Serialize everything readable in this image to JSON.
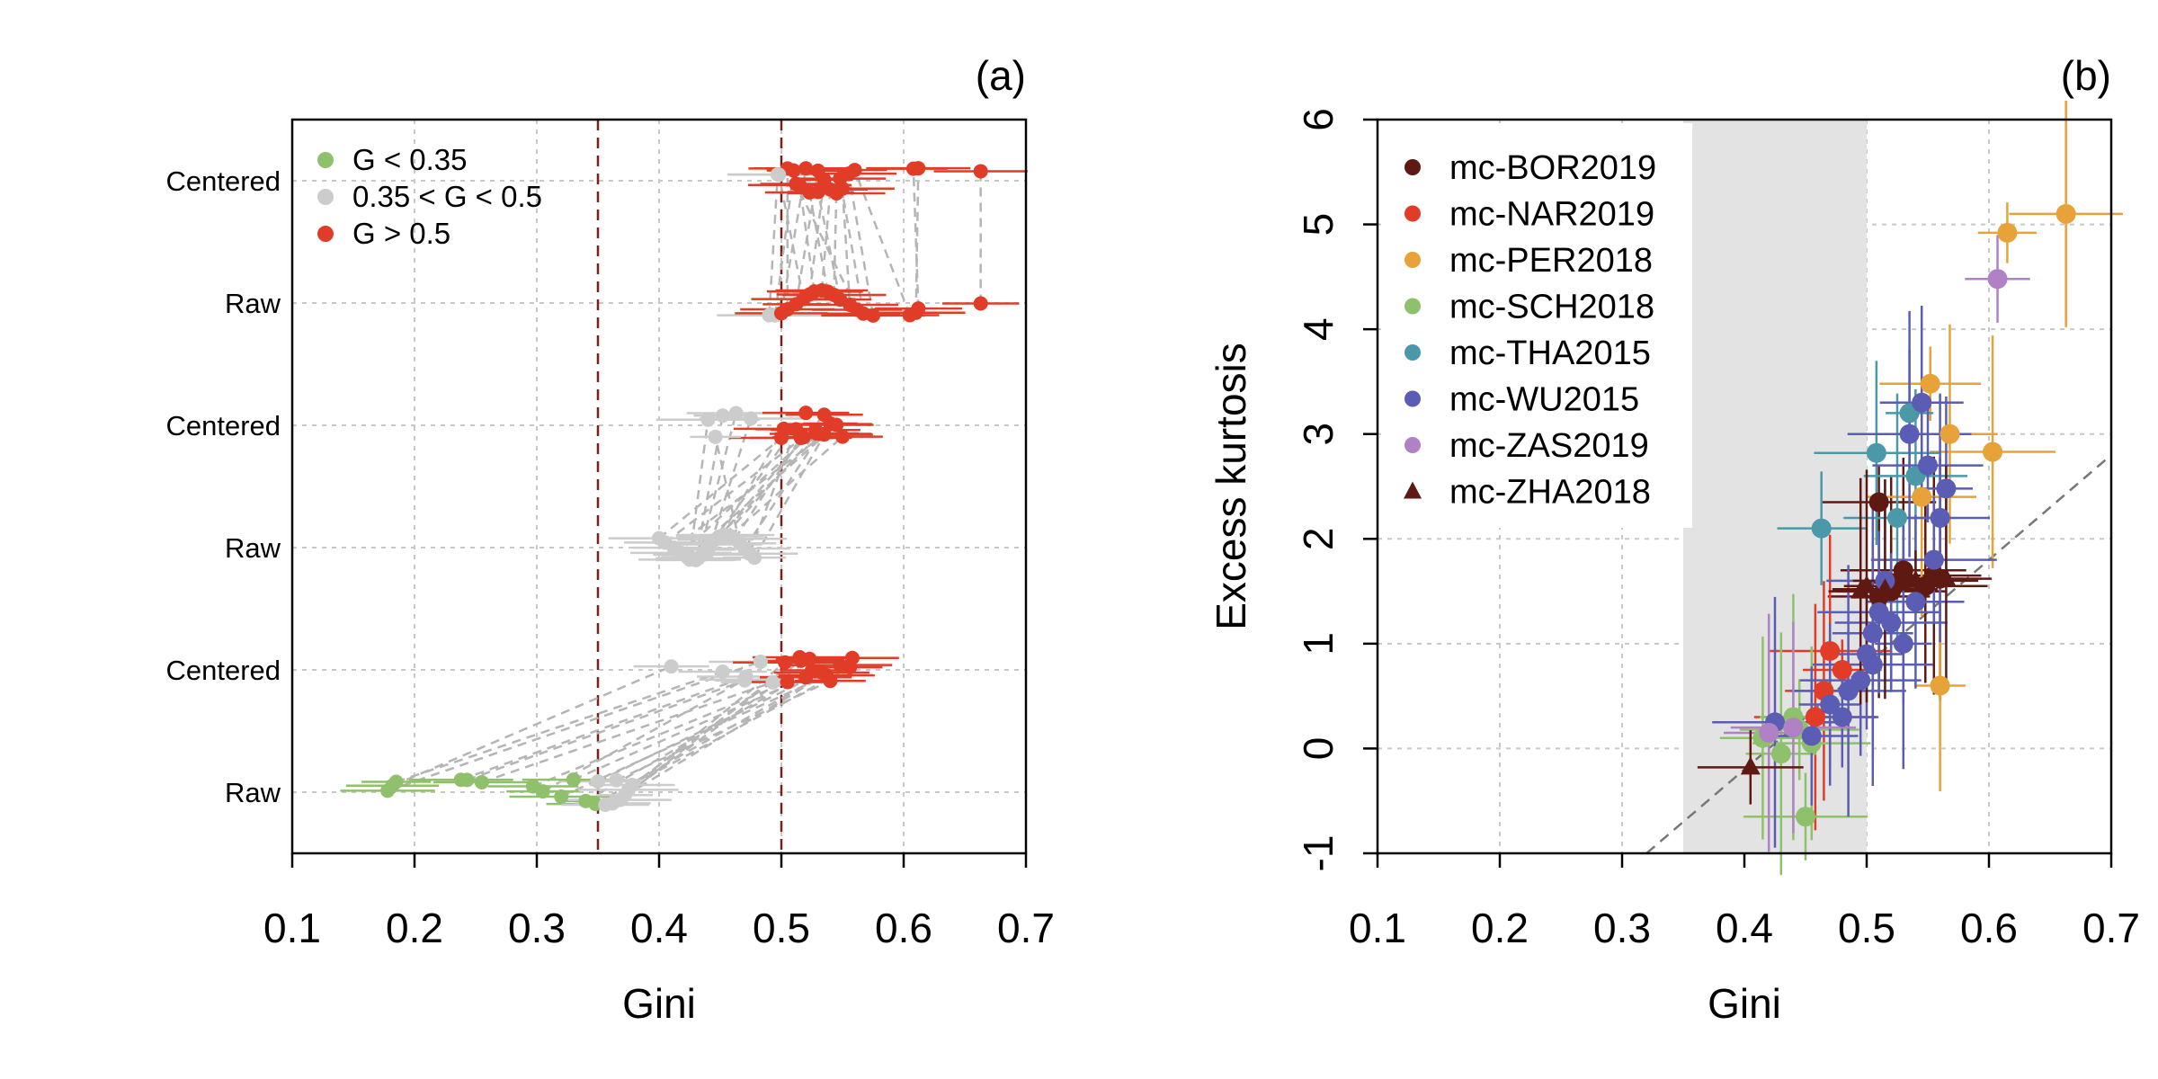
{
  "chart_data": [
    {
      "panel_label": "(a)",
      "type": "scatter",
      "xlabel": "Gini",
      "xlim": [
        0.1,
        0.7
      ],
      "x_ticks": [
        "0.1",
        "0.2",
        "0.3",
        "0.4",
        "0.5",
        "0.6",
        "0.7"
      ],
      "y_categories": [
        "Raw",
        "Centered",
        "Raw",
        "Centered",
        "Raw",
        "Centered"
      ],
      "thresholds": [
        0.35,
        0.5
      ],
      "grid": true,
      "legend_position": "top-left",
      "legend": [
        {
          "label": "G < 0.35",
          "color": "#8fc06b"
        },
        {
          "label": "0.35 < G < 0.5",
          "color": "#cccccc"
        },
        {
          "label": "G > 0.5",
          "color": "#e03c27"
        }
      ],
      "groups": [
        {
          "raw_row": 1,
          "centered_row": 2,
          "pairs": [
            [
              0.178,
              0.483
            ],
            [
              0.182,
              0.41
            ],
            [
              0.185,
              0.452
            ],
            [
              0.238,
              0.471
            ],
            [
              0.243,
              0.47
            ],
            [
              0.255,
              0.493
            ],
            [
              0.297,
              0.505
            ],
            [
              0.305,
              0.47
            ],
            [
              0.32,
              0.537
            ],
            [
              0.34,
              0.525
            ],
            [
              0.348,
              0.548
            ],
            [
              0.356,
              0.516
            ],
            [
              0.362,
              0.558
            ],
            [
              0.368,
              0.515
            ],
            [
              0.372,
              0.523
            ],
            [
              0.375,
              0.503
            ],
            [
              0.378,
              0.556
            ],
            [
              0.35,
              0.533
            ],
            [
              0.33,
              0.52
            ],
            [
              0.365,
              0.54
            ]
          ]
        },
        {
          "raw_row": 3,
          "centered_row": 4,
          "pairs": [
            [
              0.4,
              0.5
            ],
            [
              0.405,
              0.518
            ],
            [
              0.412,
              0.535
            ],
            [
              0.418,
              0.528
            ],
            [
              0.423,
              0.545
            ],
            [
              0.425,
              0.44
            ],
            [
              0.43,
              0.452
            ],
            [
              0.432,
              0.463
            ],
            [
              0.436,
              0.52
            ],
            [
              0.44,
              0.535
            ],
            [
              0.442,
              0.475
            ],
            [
              0.446,
              0.54
            ],
            [
              0.45,
              0.502
            ],
            [
              0.454,
              0.529
            ],
            [
              0.458,
              0.55
            ],
            [
              0.462,
              0.516
            ],
            [
              0.466,
              0.446
            ],
            [
              0.47,
              0.532
            ],
            [
              0.474,
              0.512
            ],
            [
              0.478,
              0.54
            ]
          ]
        },
        {
          "raw_row": 5,
          "centered_row": 6,
          "pairs": [
            [
              0.49,
              0.497
            ],
            [
              0.495,
              0.51
            ],
            [
              0.5,
              0.52
            ],
            [
              0.505,
              0.505
            ],
            [
              0.512,
              0.53
            ],
            [
              0.518,
              0.498
            ],
            [
              0.523,
              0.535
            ],
            [
              0.527,
              0.515
            ],
            [
              0.533,
              0.54
            ],
            [
              0.538,
              0.523
            ],
            [
              0.543,
              0.545
            ],
            [
              0.548,
              0.53
            ],
            [
              0.556,
              0.55
            ],
            [
              0.562,
              0.512
            ],
            [
              0.567,
              0.548
            ],
            [
              0.575,
              0.555
            ],
            [
              0.605,
              0.56
            ],
            [
              0.61,
              0.612
            ],
            [
              0.612,
              0.608
            ],
            [
              0.663,
              0.663
            ]
          ]
        }
      ]
    },
    {
      "panel_label": "(b)",
      "type": "scatter",
      "xlabel": "Gini",
      "ylabel": "Excess kurtosis",
      "xlim": [
        0.1,
        0.7
      ],
      "ylim": [
        -1,
        6
      ],
      "x_ticks": [
        "0.1",
        "0.2",
        "0.3",
        "0.4",
        "0.5",
        "0.6",
        "0.7"
      ],
      "y_ticks": [
        "-1",
        "0",
        "1",
        "2",
        "3",
        "4",
        "5",
        "6"
      ],
      "grid": true,
      "legend_position": "top-left",
      "shaded_region": {
        "x": [
          0.35,
          0.5
        ]
      },
      "reference_line": {
        "slope": 10,
        "intercept": -4.2
      },
      "series": [
        {
          "name": "mc-BOR2019",
          "color": "#5e1a12",
          "marker": "circle",
          "points": [
            [
              0.53,
              1.6
            ],
            [
              0.548,
              1.55
            ],
            [
              0.52,
              1.5
            ],
            [
              0.56,
              1.62
            ],
            [
              0.51,
              1.45
            ],
            [
              0.53,
              1.7
            ],
            [
              0.555,
              1.65
            ],
            [
              0.52,
              1.58
            ],
            [
              0.51,
              2.35
            ]
          ]
        },
        {
          "name": "mc-NAR2019",
          "color": "#e03c27",
          "marker": "circle",
          "points": [
            [
              0.47,
              0.93
            ],
            [
              0.465,
              0.55
            ],
            [
              0.48,
              0.75
            ],
            [
              0.458,
              0.3
            ]
          ]
        },
        {
          "name": "mc-PER2018",
          "color": "#e8a23a",
          "marker": "circle",
          "points": [
            [
              0.663,
              5.1
            ],
            [
              0.615,
              4.92
            ],
            [
              0.568,
              3.0
            ],
            [
              0.603,
              2.83
            ],
            [
              0.552,
              3.48
            ],
            [
              0.56,
              0.6
            ],
            [
              0.545,
              2.4
            ]
          ]
        },
        {
          "name": "mc-SCH2018",
          "color": "#8fc06b",
          "marker": "circle",
          "points": [
            [
              0.45,
              -0.65
            ],
            [
              0.415,
              0.1
            ],
            [
              0.43,
              -0.05
            ],
            [
              0.445,
              0.18
            ],
            [
              0.455,
              0.05
            ],
            [
              0.44,
              0.3
            ]
          ]
        },
        {
          "name": "mc-THA2015",
          "color": "#4b99a8",
          "marker": "circle",
          "points": [
            [
              0.463,
              2.1
            ],
            [
              0.508,
              2.82
            ],
            [
              0.525,
              2.2
            ],
            [
              0.535,
              3.2
            ],
            [
              0.54,
              2.6
            ]
          ]
        },
        {
          "name": "mc-WU2015",
          "color": "#5a5db3",
          "marker": "circle",
          "points": [
            [
              0.425,
              0.25
            ],
            [
              0.455,
              0.12
            ],
            [
              0.47,
              0.42
            ],
            [
              0.485,
              0.55
            ],
            [
              0.495,
              0.65
            ],
            [
              0.5,
              0.9
            ],
            [
              0.505,
              1.1
            ],
            [
              0.51,
              1.3
            ],
            [
              0.52,
              1.2
            ],
            [
              0.53,
              1.0
            ],
            [
              0.54,
              1.4
            ],
            [
              0.555,
              1.8
            ],
            [
              0.56,
              2.2
            ],
            [
              0.565,
              2.48
            ],
            [
              0.55,
              2.7
            ],
            [
              0.535,
              3.0
            ],
            [
              0.545,
              3.3
            ],
            [
              0.48,
              0.3
            ],
            [
              0.505,
              0.8
            ],
            [
              0.515,
              1.6
            ]
          ]
        },
        {
          "name": "mc-ZAS2019",
          "color": "#b081c4",
          "marker": "circle",
          "points": [
            [
              0.607,
              4.48
            ],
            [
              0.42,
              0.15
            ],
            [
              0.44,
              0.2
            ]
          ]
        },
        {
          "name": "mc-ZHA2018",
          "color": "#5e1a12",
          "marker": "triangle",
          "points": [
            [
              0.405,
              -0.18
            ],
            [
              0.5,
              1.55
            ],
            [
              0.515,
              1.52
            ],
            [
              0.54,
              1.6
            ],
            [
              0.565,
              1.62
            ],
            [
              0.495,
              1.5
            ]
          ]
        }
      ]
    }
  ]
}
